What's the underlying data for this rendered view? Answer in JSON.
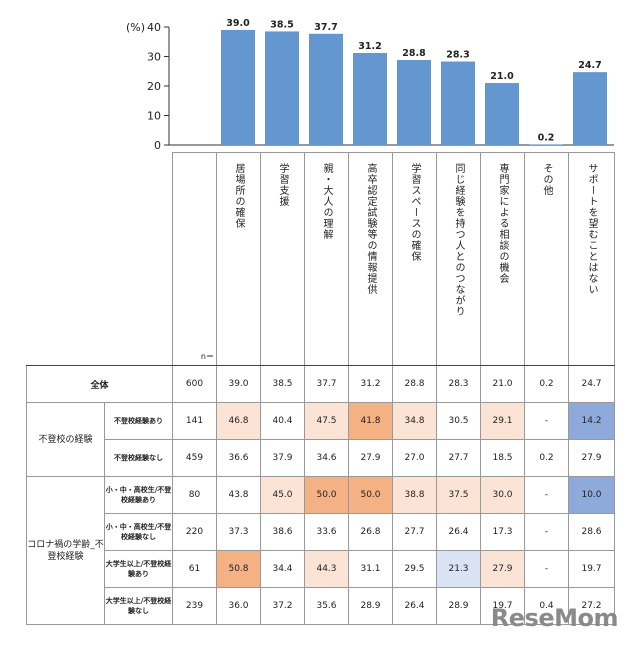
{
  "chart_data": {
    "type": "bar",
    "unit_label": "(%)",
    "ylim": [
      0,
      40
    ],
    "yticks": [
      0,
      10,
      20,
      30,
      40
    ],
    "bar_color": "#6496d0",
    "categories": [
      "居場所の確保",
      "学習支援",
      "親・大人の理解",
      "高卒認定試験等の情報提供",
      "学習スペースの確保",
      "同じ経験を持つ人とのつながり",
      "専門家による相談の機会",
      "その他",
      "サポートを望むことはない"
    ],
    "values": [
      39.0,
      38.5,
      37.7,
      31.2,
      28.8,
      28.3,
      21.0,
      0.2,
      24.7
    ],
    "value_labels": [
      "39.0",
      "38.5",
      "37.7",
      "31.2",
      "28.8",
      "28.3",
      "21.0",
      "0.2",
      "24.7"
    ]
  },
  "table": {
    "n_header": "n＝",
    "rows": [
      {
        "group": "全体",
        "sub": "",
        "n": "600",
        "values": [
          "39.0",
          "38.5",
          "37.7",
          "31.2",
          "28.8",
          "28.3",
          "21.0",
          "0.2",
          "24.7"
        ],
        "colors": [
          "",
          "",
          "",
          "",
          "",
          "",
          "",
          "",
          ""
        ]
      },
      {
        "group": "不登校の経験",
        "sub": "不登校経験あり",
        "n": "141",
        "values": [
          "46.8",
          "40.4",
          "47.5",
          "41.8",
          "34.8",
          "30.5",
          "29.1",
          "-",
          "14.2"
        ],
        "colors": [
          "#fbe3d6",
          "",
          "#fbe3d6",
          "#f4b183",
          "#fbe3d6",
          "",
          "#fbe3d6",
          "",
          "#8eaadb"
        ]
      },
      {
        "group": "",
        "sub": "不登校経験なし",
        "n": "459",
        "values": [
          "36.6",
          "37.9",
          "34.6",
          "27.9",
          "27.0",
          "27.7",
          "18.5",
          "0.2",
          "27.9"
        ],
        "colors": [
          "",
          "",
          "",
          "",
          "",
          "",
          "",
          "",
          ""
        ]
      },
      {
        "group": "コロナ禍の学齢_不登校経験",
        "sub": "小・中・高校生/不登校経験あり",
        "n": "80",
        "values": [
          "43.8",
          "45.0",
          "50.0",
          "50.0",
          "38.8",
          "37.5",
          "30.0",
          "-",
          "10.0"
        ],
        "colors": [
          "",
          "#fbe3d6",
          "#f4b183",
          "#f4b183",
          "#fbe3d6",
          "#fbe3d6",
          "#fbe3d6",
          "",
          "#8eaadb"
        ]
      },
      {
        "group": "",
        "sub": "小・中・高校生/不登校経験なし",
        "n": "220",
        "values": [
          "37.3",
          "38.6",
          "33.6",
          "26.8",
          "27.7",
          "26.4",
          "17.3",
          "-",
          "28.6"
        ],
        "colors": [
          "",
          "",
          "",
          "",
          "",
          "",
          "",
          "",
          ""
        ]
      },
      {
        "group": "",
        "sub": "大学生以上/不登校経験あり",
        "n": "61",
        "values": [
          "50.8",
          "34.4",
          "44.3",
          "31.1",
          "29.5",
          "21.3",
          "27.9",
          "-",
          "19.7"
        ],
        "colors": [
          "#f4b183",
          "",
          "#fbe3d6",
          "",
          "",
          "#dae3f3",
          "#fbe3d6",
          "",
          ""
        ]
      },
      {
        "group": "",
        "sub": "大学生以上/不登校経験なし",
        "n": "239",
        "values": [
          "36.0",
          "37.2",
          "35.6",
          "28.9",
          "26.4",
          "28.9",
          "19.7",
          "0.4",
          "27.2"
        ],
        "colors": [
          "",
          "",
          "",
          "",
          "",
          "",
          "",
          "",
          ""
        ]
      }
    ]
  },
  "logo": {
    "text": "ReseMom"
  }
}
